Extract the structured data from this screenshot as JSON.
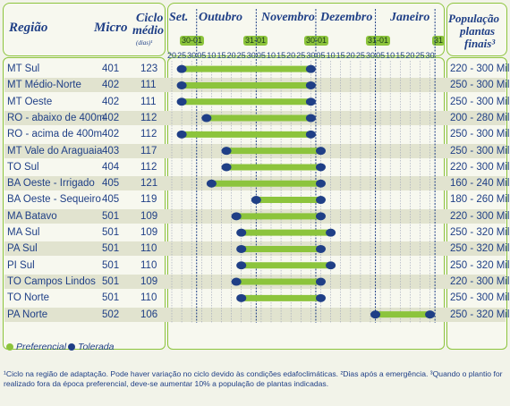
{
  "headers": {
    "regiao": "Região",
    "micro": "Micro",
    "ciclo_line1": "Ciclo",
    "ciclo_line2": "médio",
    "ciclo_unit": "(dias)¹",
    "populacao_line1": "População",
    "populacao_line2": "plantas",
    "populacao_line3": "finais³"
  },
  "months": [
    "Set.",
    "Outubro",
    "Novembro",
    "Dezembro",
    "Janeiro"
  ],
  "day_labels": [
    "20",
    "25",
    "30",
    "05",
    "10",
    "15",
    "20",
    "25",
    "30",
    "05",
    "10",
    "15",
    "20",
    "25",
    "30",
    "05",
    "10",
    "15",
    "20",
    "25",
    "30",
    "05",
    "10",
    "15",
    "20",
    "25",
    "30"
  ],
  "date_tags": [
    "30-01",
    "31-01",
    "30-01",
    "31-01",
    "31"
  ],
  "rows": [
    {
      "regiao": "MT Sul",
      "micro": "401",
      "ciclo": "123",
      "start": 1,
      "end": 14,
      "populacao": "220 - 300 Mil"
    },
    {
      "regiao": "MT Médio-Norte",
      "micro": "402",
      "ciclo": "111",
      "start": 1,
      "end": 14,
      "populacao": "250 - 300 Mil"
    },
    {
      "regiao": "MT Oeste",
      "micro": "402",
      "ciclo": "111",
      "start": 1,
      "end": 14,
      "populacao": "250 - 300 Mil"
    },
    {
      "regiao": "RO - abaixo de 400m",
      "micro": "402",
      "ciclo": "112",
      "start": 3.5,
      "end": 14,
      "populacao": "200 - 280 Mil"
    },
    {
      "regiao": "RO - acima de 400m",
      "micro": "402",
      "ciclo": "112",
      "start": 1,
      "end": 14,
      "populacao": "250 - 300 Mil"
    },
    {
      "regiao": "MT Vale do Araguaia",
      "micro": "403",
      "ciclo": "117",
      "start": 5.5,
      "end": 15,
      "populacao": "250 - 300 Mil"
    },
    {
      "regiao": "TO Sul",
      "micro": "404",
      "ciclo": "112",
      "start": 5.5,
      "end": 15,
      "populacao": "220 - 300 Mil"
    },
    {
      "regiao": "BA Oeste - Irrigado",
      "micro": "405",
      "ciclo": "121",
      "start": 4,
      "end": 15,
      "populacao": "160 - 240 Mil"
    },
    {
      "regiao": "BA Oeste - Sequeiro",
      "micro": "405",
      "ciclo": "119",
      "start": 8.5,
      "end": 15,
      "populacao": "180 - 260 Mil"
    },
    {
      "regiao": "MA Batavo",
      "micro": "501",
      "ciclo": "109",
      "start": 6.5,
      "end": 15,
      "populacao": "220 - 300 Mil"
    },
    {
      "regiao": "MA Sul",
      "micro": "501",
      "ciclo": "109",
      "start": 7,
      "end": 16,
      "populacao": "250 - 320 Mil"
    },
    {
      "regiao": "PA Sul",
      "micro": "501",
      "ciclo": "110",
      "start": 7,
      "end": 15,
      "populacao": "250 - 320 Mil"
    },
    {
      "regiao": "PI Sul",
      "micro": "501",
      "ciclo": "110",
      "start": 7,
      "end": 16,
      "populacao": "250 - 320 Mil"
    },
    {
      "regiao": "TO Campos Lindos",
      "micro": "501",
      "ciclo": "109",
      "start": 6.5,
      "end": 15,
      "populacao": "220 - 300 Mil"
    },
    {
      "regiao": "TO Norte",
      "micro": "501",
      "ciclo": "110",
      "start": 7,
      "end": 15,
      "populacao": "250 - 300 Mil"
    },
    {
      "regiao": "PA Norte",
      "micro": "502",
      "ciclo": "106",
      "start": 20.5,
      "end": 26,
      "populacao": "250 - 320 Mil"
    }
  ],
  "legend": {
    "preferencial": "Preferencial",
    "tolerada": "Tolerada"
  },
  "colors": {
    "preferencial": "#8cc43c",
    "tolerada": "#1f3f86",
    "accent": "#8cc43c",
    "text": "#1f3f86"
  },
  "footnote": "¹Ciclo na região de adaptação. Pode haver variação no ciclo devido às condições edafoclimáticas. ²Dias após a emergência. ³Quando o plantio for realizado fora da época preferencial, deve-se aumentar 10% a população de plantas indicadas."
}
